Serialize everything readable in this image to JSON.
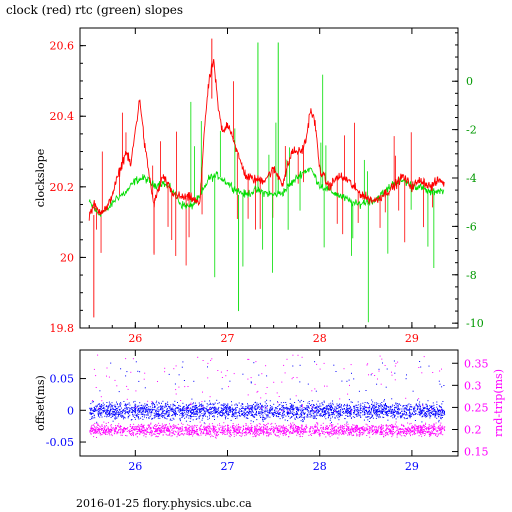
{
  "title": "clock (red) rtc (green) slopes",
  "footer": "2016-01-25 flory.physics.ubc.ca",
  "colors": {
    "clock": "#ff0000",
    "rtc": "#00dd00",
    "offset": "#0000ff",
    "rndtrip": "#ff00ff",
    "axis": "#000000"
  },
  "chart_data": [
    {
      "type": "line",
      "title": "clock (red) rtc (green) slopes",
      "ylabel": "clockslope",
      "xlim": [
        25.4,
        29.5
      ],
      "x_ticks": [
        "26",
        "27",
        "28",
        "29"
      ],
      "x_tick_values": [
        26,
        27,
        28,
        29
      ],
      "ylim_left": [
        19.8,
        20.65
      ],
      "y_ticks_left": [
        "19.8",
        "20",
        "20.2",
        "20.4",
        "20.6"
      ],
      "y_tick_values_left": [
        19.8,
        20.0,
        20.2,
        20.4,
        20.6
      ],
      "ylim_right": [
        -10.2,
        2.2
      ],
      "y_ticks_right": [
        "-10",
        "-8",
        "-6",
        "-4",
        "-2",
        "0"
      ],
      "y_tick_values_right": [
        -10,
        -8,
        -6,
        -4,
        -2,
        0
      ],
      "series": [
        {
          "axis": "left",
          "color": "#ff0000",
          "x": [
            25.5,
            25.55,
            25.6,
            25.7,
            25.8,
            25.9,
            25.95,
            26.0,
            26.05,
            26.1,
            26.2,
            26.3,
            26.4,
            26.5,
            26.6,
            26.7,
            26.75,
            26.8,
            26.85,
            26.9,
            26.95,
            27.0,
            27.05,
            27.1,
            27.2,
            27.3,
            27.4,
            27.5,
            27.6,
            27.7,
            27.8,
            27.85,
            27.9,
            27.95,
            28.0,
            28.1,
            28.2,
            28.3,
            28.4,
            28.5,
            28.6,
            28.7,
            28.8,
            28.9,
            29.0,
            29.1,
            29.2,
            29.3,
            29.35
          ],
          "y": [
            20.12,
            20.15,
            20.13,
            20.14,
            20.22,
            20.3,
            20.26,
            20.36,
            20.45,
            20.32,
            20.15,
            20.23,
            20.18,
            20.17,
            20.17,
            20.15,
            20.37,
            20.5,
            20.56,
            20.42,
            20.35,
            20.38,
            20.35,
            20.3,
            20.23,
            20.22,
            20.22,
            20.25,
            20.21,
            20.3,
            20.3,
            20.33,
            20.42,
            20.38,
            20.25,
            20.2,
            20.23,
            20.22,
            20.19,
            20.17,
            20.16,
            20.18,
            20.2,
            20.23,
            20.2,
            20.22,
            20.2,
            20.22,
            20.21
          ]
        },
        {
          "axis": "right",
          "color": "#00dd00",
          "x": [
            25.5,
            25.6,
            25.7,
            25.8,
            25.9,
            26.0,
            26.1,
            26.2,
            26.3,
            26.4,
            26.5,
            26.6,
            26.7,
            26.8,
            26.9,
            27.0,
            27.1,
            27.2,
            27.3,
            27.4,
            27.5,
            27.6,
            27.7,
            27.8,
            27.9,
            28.0,
            28.1,
            28.2,
            28.3,
            28.4,
            28.5,
            28.6,
            28.7,
            28.8,
            28.9,
            29.0,
            29.1,
            29.2,
            29.3,
            29.35
          ],
          "y": [
            -5.0,
            -5.5,
            -5.3,
            -4.8,
            -4.6,
            -4.1,
            -4.0,
            -4.3,
            -4.2,
            -4.5,
            -5.1,
            -5.2,
            -4.8,
            -4.0,
            -3.9,
            -4.2,
            -4.5,
            -4.7,
            -4.5,
            -4.6,
            -4.7,
            -4.6,
            -4.2,
            -3.8,
            -3.6,
            -4.3,
            -4.5,
            -4.7,
            -4.9,
            -5.1,
            -5.0,
            -4.9,
            -4.6,
            -4.2,
            -4.1,
            -4.3,
            -4.4,
            -4.6,
            -4.5,
            -4.6
          ]
        }
      ]
    },
    {
      "type": "scatter",
      "xlim": [
        25.4,
        29.5
      ],
      "x_ticks": [
        "26",
        "27",
        "28",
        "29"
      ],
      "x_tick_values": [
        26,
        27,
        28,
        29
      ],
      "ylabel_left": "offset(ms)",
      "ylim_left": [
        -0.072,
        0.095
      ],
      "y_ticks_left": [
        "-0.05",
        "0",
        "0.05"
      ],
      "y_tick_values_left": [
        -0.05,
        0,
        0.05
      ],
      "ylabel_right": "rnd-trip(ms)",
      "ylim_right": [
        0.14,
        0.38
      ],
      "y_ticks_right": [
        "0.15",
        "0.2",
        "0.25",
        "0.3",
        "0.35"
      ],
      "y_tick_values_right": [
        0.15,
        0.2,
        0.25,
        0.3,
        0.35
      ],
      "series": [
        {
          "axis": "left",
          "color": "#0000ff",
          "x_range": [
            25.5,
            29.35
          ],
          "center": 0.0,
          "spread": 0.02
        },
        {
          "axis": "right",
          "color": "#ff00ff",
          "x_range": [
            25.5,
            29.35
          ],
          "center": 0.2,
          "spread": 0.02
        }
      ]
    }
  ]
}
